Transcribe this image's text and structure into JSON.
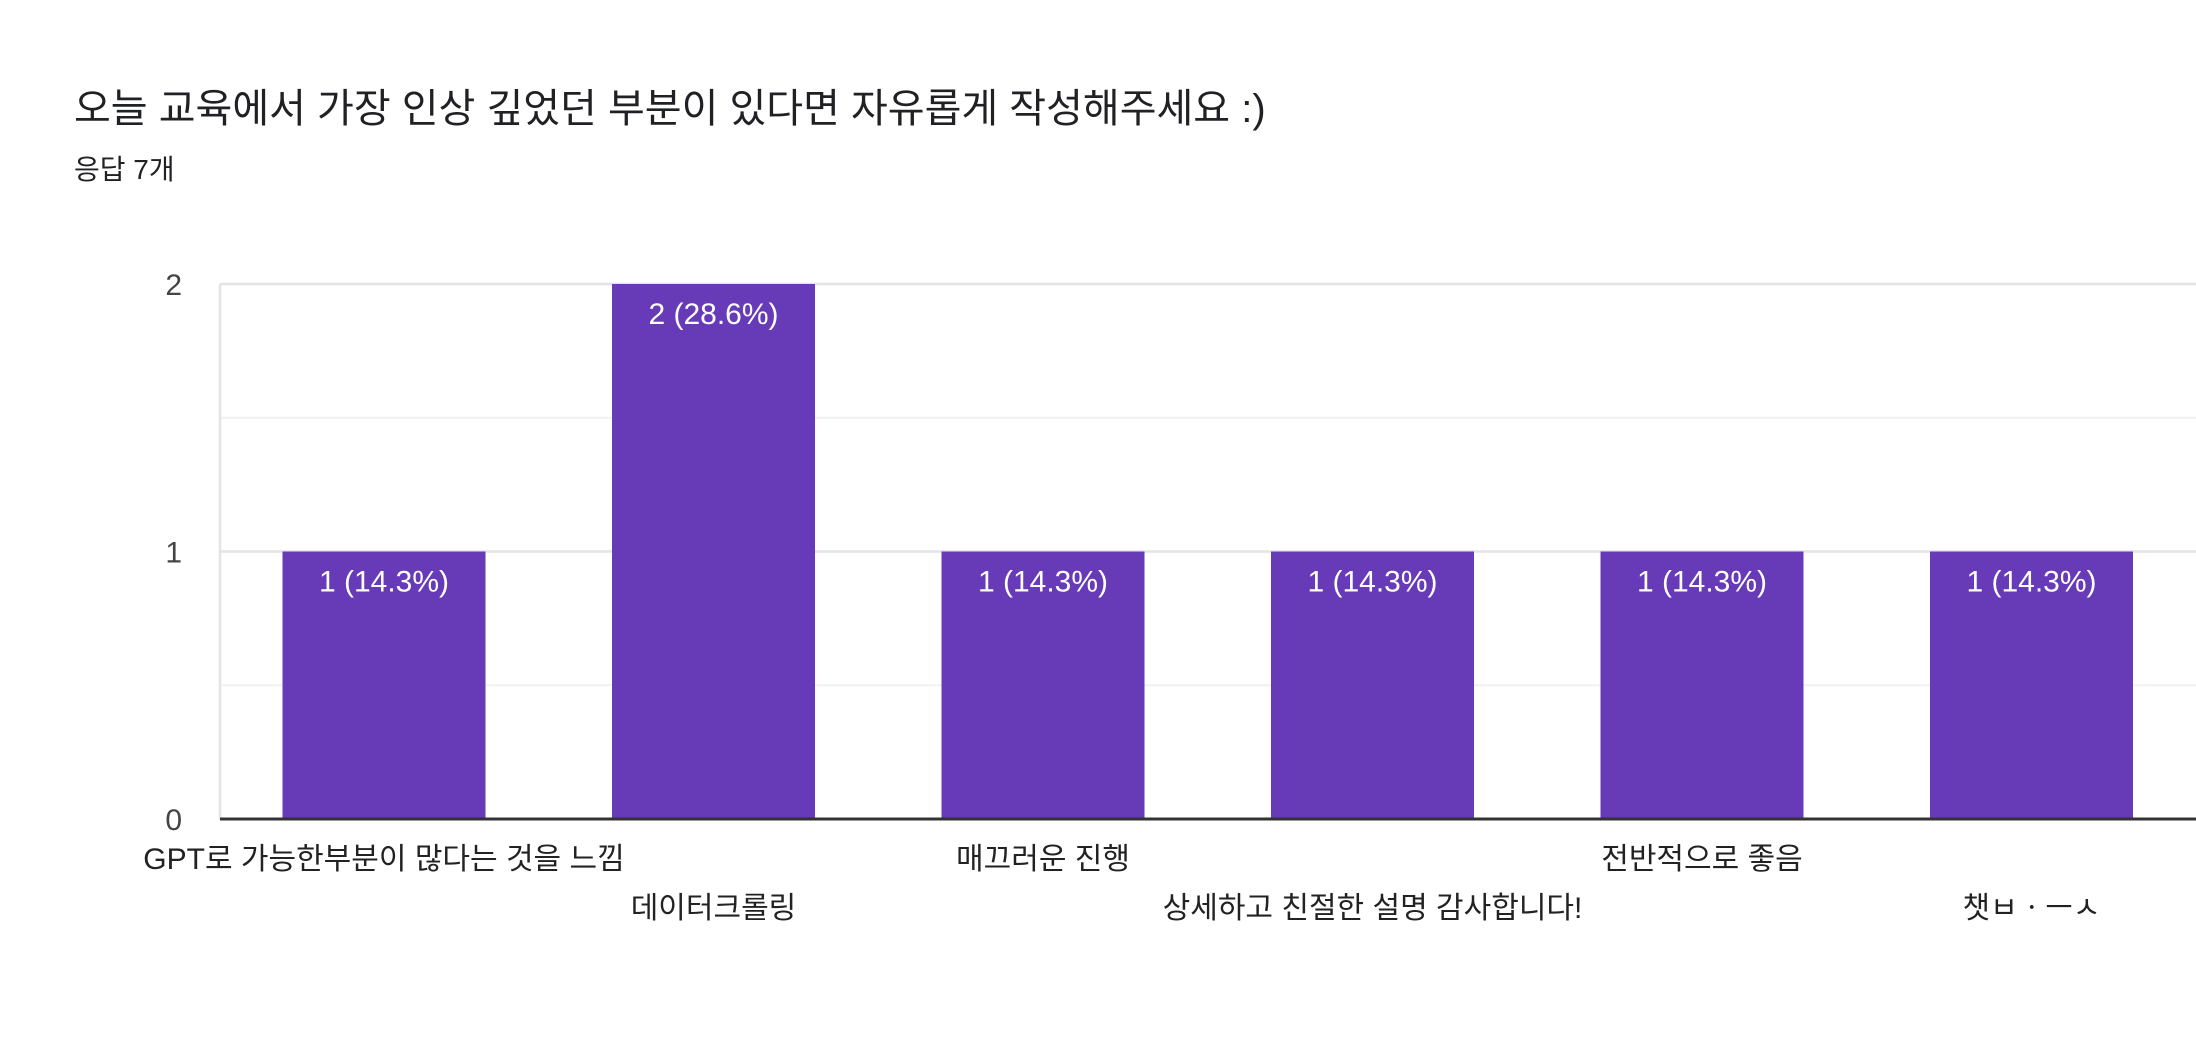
{
  "header": {
    "title": "오늘 교육에서 가장 인상 깊었던 부분이 있다면 자유롭게 작성해주세요 :)",
    "response_count": "응답 7개"
  },
  "chart_data": {
    "type": "bar",
    "categories": [
      "GPT로 가능한부분이 많다는 것을 느낌",
      "데이터크롤링",
      "매끄러운 진행",
      "상세하고 친절한 설명 감사합니다!",
      "전반적으로 좋음",
      "챗ㅂㆍㅡㅅ"
    ],
    "values": [
      1,
      2,
      1,
      1,
      1,
      1
    ],
    "data_labels": [
      "1 (14.3%)",
      "2 (28.6%)",
      "1 (14.3%)",
      "1 (14.3%)",
      "1 (14.3%)",
      "1 (14.3%)"
    ],
    "ylim": [
      0,
      2
    ],
    "yticks": [
      0,
      1,
      2
    ],
    "grid": true,
    "bar_color": "#673ab7"
  }
}
